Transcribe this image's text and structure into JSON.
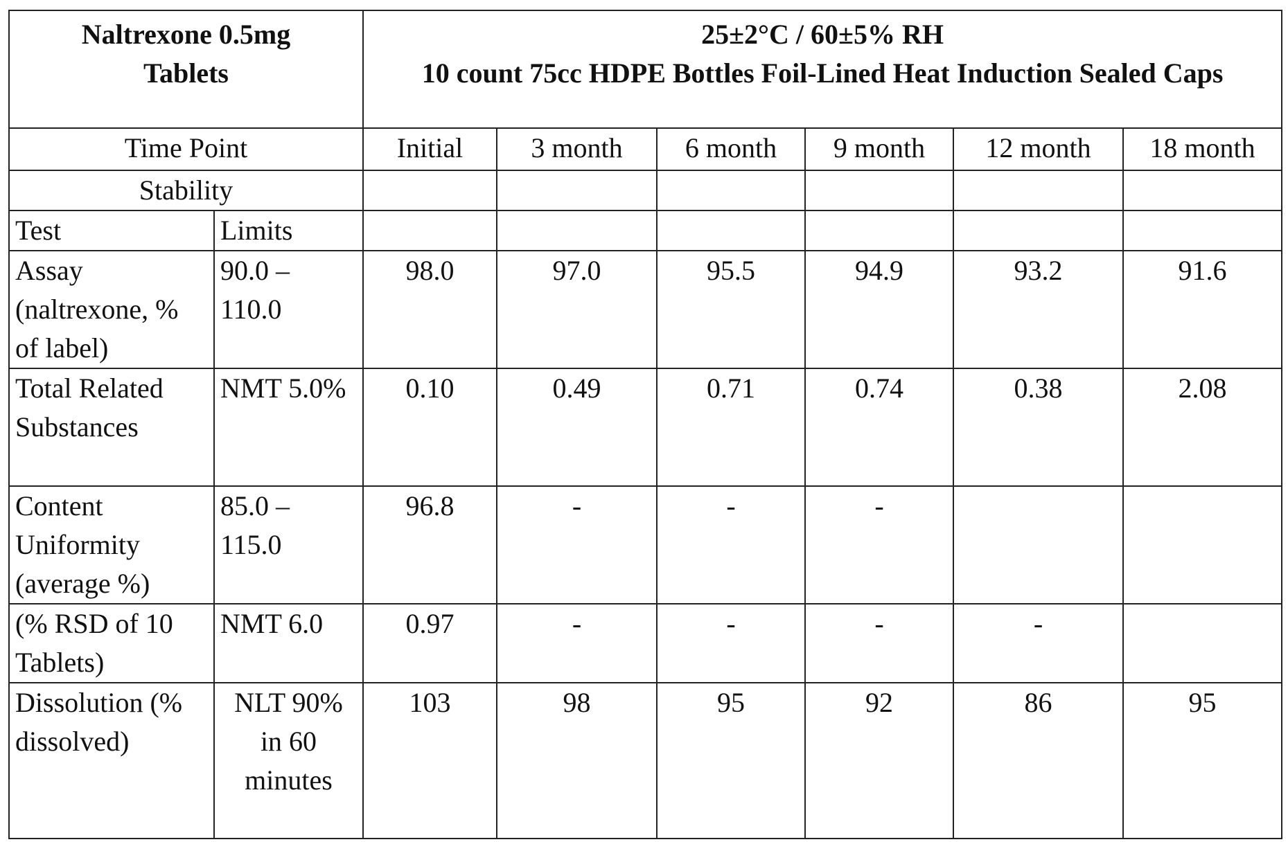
{
  "product": {
    "line1": "Naltrexone 0.5mg",
    "line2": "Tablets"
  },
  "condition": {
    "line1": "25±2°C / 60±5% RH",
    "line2": "10 count 75cc HDPE Bottles Foil-Lined Heat Induction Sealed Caps"
  },
  "time_point_label": "Time Point",
  "time_points": [
    "Initial",
    "3 month",
    "6 month",
    "9 month",
    "12 month",
    "18 month"
  ],
  "stability_label": "Stability",
  "test_label": "Test",
  "limits_label": "Limits",
  "rows": [
    {
      "test": "Assay (naltrexone, % of label)",
      "limits": "90.0 – 110.0",
      "values": [
        "98.0",
        "97.0",
        "95.5",
        "94.9",
        "93.2",
        "91.6"
      ]
    },
    {
      "test": "Total Related Substances",
      "limits": "NMT 5.0%",
      "values": [
        "0.10",
        "0.49",
        "0.71",
        "0.74",
        "0.38",
        "2.08"
      ]
    },
    {
      "test": "Content Uniformity (average %)",
      "limits": "85.0 – 115.0",
      "values": [
        "96.8",
        "-",
        "-",
        "-",
        "",
        ""
      ]
    },
    {
      "test": "(% RSD of 10 Tablets)",
      "limits": "NMT 6.0",
      "values": [
        "0.97",
        "-",
        "-",
        "-",
        "-",
        ""
      ]
    },
    {
      "test": "Dissolution (% dissolved)",
      "limits": "NLT 90% in 60 minutes",
      "values": [
        "103",
        "98",
        "95",
        "92",
        "86",
        "95"
      ]
    }
  ]
}
